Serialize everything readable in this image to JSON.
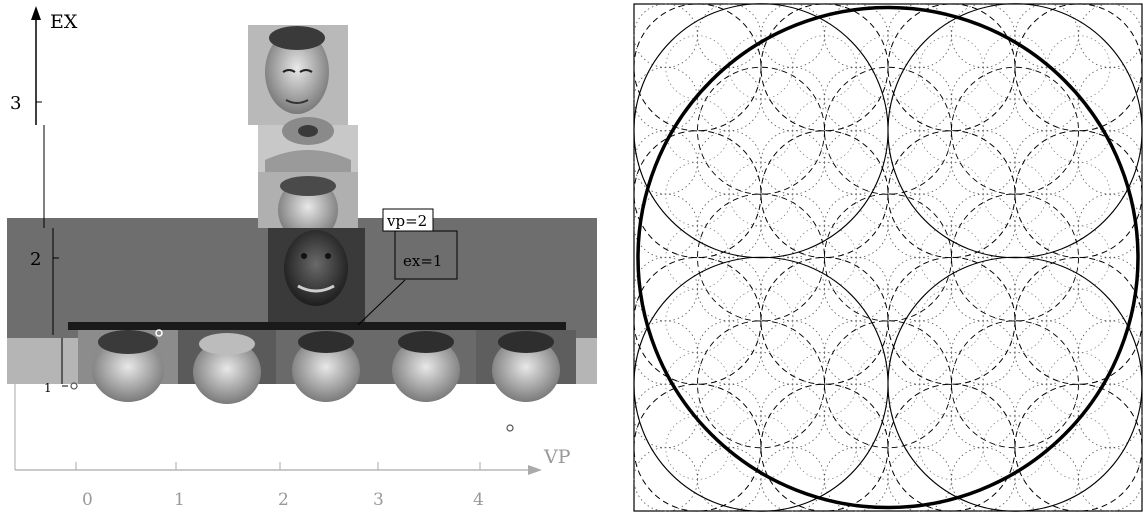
{
  "left_figure": {
    "y_axis_label": "EX",
    "x_axis_label": "VP",
    "y_ticks": [
      "3",
      "2",
      "1"
    ],
    "x_ticks": [
      "0",
      "1",
      "2",
      "3",
      "4"
    ],
    "callout": {
      "line1": "vp=2",
      "line2": "ex=1"
    },
    "face_image_count": 9
  },
  "right_figure": {
    "description_free": true,
    "grid": "hierarchical circle packing",
    "large_circle": "thick outer circle",
    "levels": [
      "solid",
      "dashed",
      "dotted"
    ]
  }
}
